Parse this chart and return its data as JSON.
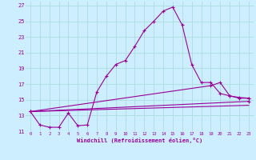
{
  "xlabel": "Windchill (Refroidissement éolien,°C)",
  "bg_color": "#cceeff",
  "grid_color": "#aadddd",
  "line_color": "#990099",
  "xlim": [
    -0.5,
    23.5
  ],
  "ylim": [
    11,
    27.5
  ],
  "xticks": [
    0,
    1,
    2,
    3,
    4,
    5,
    6,
    7,
    8,
    9,
    10,
    11,
    12,
    13,
    14,
    15,
    16,
    17,
    18,
    19,
    20,
    21,
    22,
    23
  ],
  "yticks": [
    11,
    13,
    15,
    17,
    19,
    21,
    23,
    25,
    27
  ],
  "series1_x": [
    0,
    1,
    2,
    3,
    4,
    5,
    6,
    7,
    8,
    9,
    10,
    11,
    12,
    13,
    14,
    15,
    16,
    17,
    18,
    19,
    20,
    21,
    22,
    23
  ],
  "series1_y": [
    13.5,
    11.8,
    11.5,
    11.5,
    13.3,
    11.7,
    11.8,
    16.0,
    18.0,
    19.5,
    20.0,
    21.8,
    23.8,
    25.0,
    26.3,
    26.8,
    24.5,
    19.5,
    17.2,
    17.2,
    15.8,
    15.5,
    15.2,
    15.2
  ],
  "series2_x": [
    0,
    19,
    20,
    21,
    22,
    23
  ],
  "series2_y": [
    13.5,
    16.8,
    17.2,
    15.5,
    15.3,
    15.2
  ],
  "series3_x": [
    0,
    23
  ],
  "series3_y": [
    13.5,
    14.8
  ],
  "series4_x": [
    0,
    23
  ],
  "series4_y": [
    13.5,
    14.3
  ]
}
